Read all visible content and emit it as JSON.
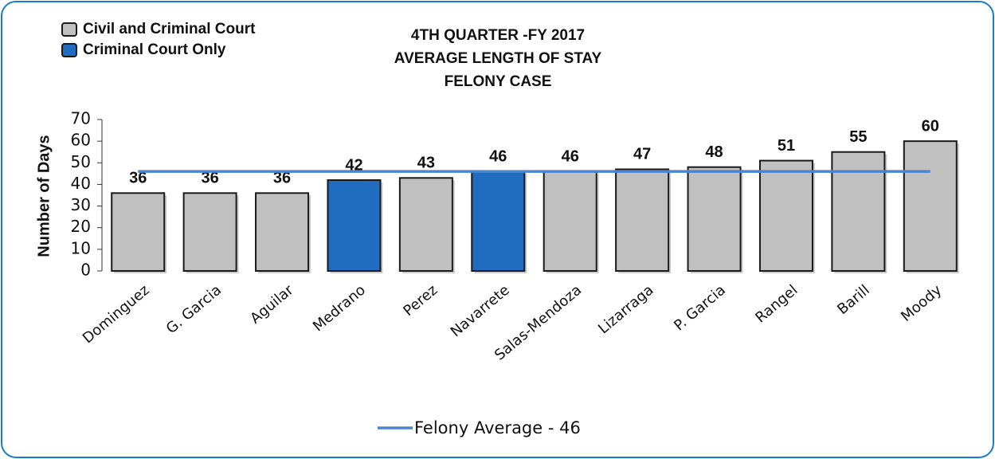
{
  "chart_data": {
    "type": "bar",
    "title": [
      "4TH QUARTER -FY 2017",
      "AVERAGE LENGTH OF STAY",
      "FELONY CASE"
    ],
    "y_label": "Number of Days",
    "categories": [
      "Dominguez",
      "G. Garcia",
      "Aguilar",
      "Medrano",
      "Perez",
      "Navarrete",
      "Salas-Mendoza",
      "Lizarraga",
      "P. Garcia",
      "Rangel",
      "Barill",
      "Moody"
    ],
    "series": [
      {
        "name": "Civil and Criminal Court",
        "color": "#c0c0c0",
        "values": [
          36,
          36,
          36,
          null,
          43,
          null,
          46,
          47,
          48,
          51,
          55,
          60
        ]
      },
      {
        "name": "Criminal Court Only",
        "color": "#1f6cc0",
        "values": [
          null,
          null,
          null,
          42,
          null,
          46,
          null,
          null,
          null,
          null,
          null,
          null
        ]
      },
      {
        "name": "Felony Average - 46",
        "color": "#4a86d0",
        "type": "line",
        "values": [
          46,
          46,
          46,
          46,
          46,
          46,
          46,
          46,
          46,
          46,
          46,
          46
        ]
      }
    ],
    "ylim": [
      0,
      70
    ],
    "yticks": [
      0,
      10,
      20,
      30,
      40,
      50,
      60,
      70
    ]
  }
}
